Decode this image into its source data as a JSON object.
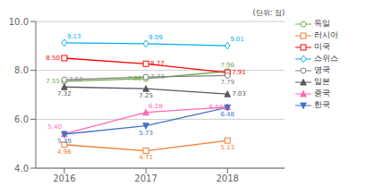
{
  "chart_data": {
    "type": "line",
    "y_label": "(단위: 점)",
    "x": [
      2016,
      2017,
      2018
    ],
    "xlim": [
      2015.65,
      2018.7
    ],
    "xticks": [
      2016,
      2017,
      2018
    ],
    "ylim": [
      4.0,
      10.0
    ],
    "yticks": [
      {
        "value": 4.0,
        "label": "4.0"
      },
      {
        "value": 6.0,
        "label": "6.0"
      },
      {
        "value": 8.0,
        "label": "8.0"
      },
      {
        "value": 10.0,
        "label": "10.0"
      }
    ],
    "grid": true,
    "legend": "right",
    "data_labels": true,
    "series": [
      {
        "name": "독일",
        "color": "#70ad47",
        "marker": "circle",
        "values": [
          7.55,
          7.66,
          7.96
        ],
        "value_labels": [
          "7.55",
          "7.66",
          "7.96"
        ]
      },
      {
        "name": "러시아",
        "color": "#ed7d31",
        "marker": "square",
        "values": [
          4.96,
          4.71,
          5.13
        ],
        "value_labels": [
          "4.96",
          "4.71",
          "5.13"
        ]
      },
      {
        "name": "미국",
        "color": "#ff0000",
        "marker": "square",
        "values": [
          8.5,
          8.27,
          7.91
        ],
        "value_labels": [
          "8.50",
          "8.27",
          "7.91"
        ]
      },
      {
        "name": "스위스",
        "color": "#00b0f0",
        "marker": "diamond",
        "values": [
          9.13,
          9.09,
          9.01
        ],
        "value_labels": [
          "9.13",
          "9.09",
          "9.01"
        ]
      },
      {
        "name": "영국",
        "color": "#808080",
        "marker": "circle",
        "values": [
          7.62,
          7.73,
          7.79
        ],
        "value_labels": [
          "7.62",
          "7.73",
          "7.79"
        ]
      },
      {
        "name": "일본",
        "color": "#595959",
        "marker": "triangle-up",
        "values": [
          7.32,
          7.25,
          7.03
        ],
        "value_labels": [
          "7.32",
          "7.25",
          "7.03"
        ]
      },
      {
        "name": "중국",
        "color": "#ff69b4",
        "marker": "triangle-up",
        "values": [
          5.4,
          6.28,
          6.5
        ],
        "value_labels": [
          "5.40",
          "6.28",
          "6.50"
        ]
      },
      {
        "name": "한국",
        "color": "#4472c4",
        "marker": "triangle-down",
        "values": [
          5.39,
          5.73,
          6.48
        ],
        "value_labels": [
          "5.39",
          "5.73",
          "6.48"
        ]
      }
    ]
  }
}
